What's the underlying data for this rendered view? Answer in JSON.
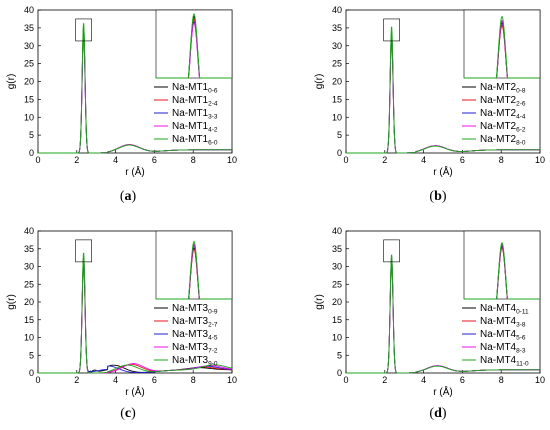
{
  "colors": {
    "series": [
      "#000000",
      "#e8141c",
      "#1f1fd0",
      "#ee10ee",
      "#18a818"
    ]
  },
  "chart_data": [
    {
      "type": "line",
      "panel_label": "(a)",
      "xlabel": "r (Å)",
      "ylabel": "g(r)",
      "xlim": [
        0,
        10
      ],
      "ylim": [
        0,
        40
      ],
      "xticks": [
        "0",
        "2",
        "4",
        "6",
        "8",
        "10"
      ],
      "yticks": [
        "0",
        "5",
        "10",
        "15",
        "20",
        "25",
        "30",
        "35",
        "40"
      ],
      "legend_position": "right, below inset",
      "inset": "zoom of first peak near r = 2.3",
      "series": [
        {
          "name_base": "Na-MT1",
          "name_sub": "0-6",
          "peak_r": 2.35,
          "peak_g": 35.5,
          "second_peak_r": 4.7,
          "second_peak_g": 2.3
        },
        {
          "name_base": "Na-MT1",
          "name_sub": "2-4",
          "peak_r": 2.35,
          "peak_g": 34.5,
          "second_peak_r": 4.7,
          "second_peak_g": 2.3
        },
        {
          "name_base": "Na-MT1",
          "name_sub": "3-3",
          "peak_r": 2.35,
          "peak_g": 33.5,
          "second_peak_r": 4.7,
          "second_peak_g": 2.2
        },
        {
          "name_base": "Na-MT1",
          "name_sub": "4-2",
          "peak_r": 2.35,
          "peak_g": 33.0,
          "second_peak_r": 4.7,
          "second_peak_g": 2.3
        },
        {
          "name_base": "Na-MT1",
          "name_sub": "6-0",
          "peak_r": 2.35,
          "peak_g": 36.5,
          "second_peak_r": 4.7,
          "second_peak_g": 2.2
        }
      ]
    },
    {
      "type": "line",
      "panel_label": "(b)",
      "xlabel": "r (Å)",
      "ylabel": "g(r)",
      "xlim": [
        0,
        10
      ],
      "ylim": [
        0,
        40
      ],
      "xticks": [
        "0",
        "2",
        "4",
        "6",
        "8",
        "10"
      ],
      "yticks": [
        "0",
        "5",
        "10",
        "15",
        "20",
        "25",
        "30",
        "35",
        "40"
      ],
      "legend_position": "right, below inset",
      "inset": "zoom of first peak near r = 2.3",
      "series": [
        {
          "name_base": "Na-MT2",
          "name_sub": "0-8",
          "peak_r": 2.35,
          "peak_g": 33.0,
          "second_peak_r": 4.6,
          "second_peak_g": 2.0
        },
        {
          "name_base": "Na-MT2",
          "name_sub": "2-6",
          "peak_r": 2.35,
          "peak_g": 32.0,
          "second_peak_r": 4.6,
          "second_peak_g": 2.0
        },
        {
          "name_base": "Na-MT2",
          "name_sub": "4-4",
          "peak_r": 2.35,
          "peak_g": 33.5,
          "second_peak_r": 4.6,
          "second_peak_g": 2.0
        },
        {
          "name_base": "Na-MT2",
          "name_sub": "6-2",
          "peak_r": 2.35,
          "peak_g": 34.0,
          "second_peak_r": 4.6,
          "second_peak_g": 2.0
        },
        {
          "name_base": "Na-MT2",
          "name_sub": "8-0",
          "peak_r": 2.35,
          "peak_g": 35.5,
          "second_peak_r": 4.6,
          "second_peak_g": 1.9
        }
      ]
    },
    {
      "type": "line",
      "panel_label": "(c)",
      "xlabel": "r (Å)",
      "ylabel": "g(r)",
      "xlim": [
        0,
        10
      ],
      "ylim": [
        0,
        40
      ],
      "xticks": [
        "0",
        "2",
        "4",
        "6",
        "8",
        "10"
      ],
      "yticks": [
        "0",
        "5",
        "10",
        "15",
        "20",
        "25",
        "30",
        "35",
        "40"
      ],
      "legend_position": "right, below inset",
      "inset": "zoom of first peak near r = 2.3",
      "series": [
        {
          "name_base": "Na-MT3",
          "name_sub": "0-9",
          "peak_r": 2.35,
          "peak_g": 31.5,
          "second_peak_r": 3.9,
          "second_peak_g": 2.2
        },
        {
          "name_base": "Na-MT3",
          "name_sub": "2-7",
          "peak_r": 2.35,
          "peak_g": 31.0,
          "second_peak_r": 4.8,
          "second_peak_g": 2.4
        },
        {
          "name_base": "Na-MT3",
          "name_sub": "4-5",
          "peak_r": 2.35,
          "peak_g": 32.5,
          "second_peak_r": 3.6,
          "second_peak_g": 2.0
        },
        {
          "name_base": "Na-MT3",
          "name_sub": "7-2",
          "peak_r": 2.35,
          "peak_g": 33.0,
          "second_peak_r": 4.9,
          "second_peak_g": 2.6
        },
        {
          "name_base": "Na-MT3",
          "name_sub": "9-0",
          "peak_r": 2.35,
          "peak_g": 34.0,
          "second_peak_r": 4.6,
          "second_peak_g": 2.2
        }
      ]
    },
    {
      "type": "line",
      "panel_label": "(d)",
      "xlabel": "r (Å)",
      "ylabel": "g(r)",
      "xlim": [
        0,
        10
      ],
      "ylim": [
        0,
        40
      ],
      "xticks": [
        "0",
        "2",
        "4",
        "6",
        "8",
        "10"
      ],
      "yticks": [
        "0",
        "5",
        "10",
        "15",
        "20",
        "25",
        "30",
        "35",
        "40"
      ],
      "legend_position": "right, below inset",
      "inset": "zoom of first peak near r = 2.3",
      "series": [
        {
          "name_base": "Na-MT4",
          "name_sub": "0-11",
          "peak_r": 2.35,
          "peak_g": 32.0,
          "second_peak_r": 4.7,
          "second_peak_g": 2.0
        },
        {
          "name_base": "Na-MT4",
          "name_sub": "3-8",
          "peak_r": 2.35,
          "peak_g": 31.5,
          "second_peak_r": 4.7,
          "second_peak_g": 2.0
        },
        {
          "name_base": "Na-MT4",
          "name_sub": "5-6",
          "peak_r": 2.35,
          "peak_g": 32.5,
          "second_peak_r": 4.7,
          "second_peak_g": 2.0
        },
        {
          "name_base": "Na-MT4",
          "name_sub": "8-3",
          "peak_r": 2.35,
          "peak_g": 33.0,
          "second_peak_r": 4.7,
          "second_peak_g": 2.0
        },
        {
          "name_base": "Na-MT4",
          "name_sub": "11-0",
          "peak_r": 2.35,
          "peak_g": 33.5,
          "second_peak_r": 4.7,
          "second_peak_g": 1.9
        }
      ]
    }
  ]
}
